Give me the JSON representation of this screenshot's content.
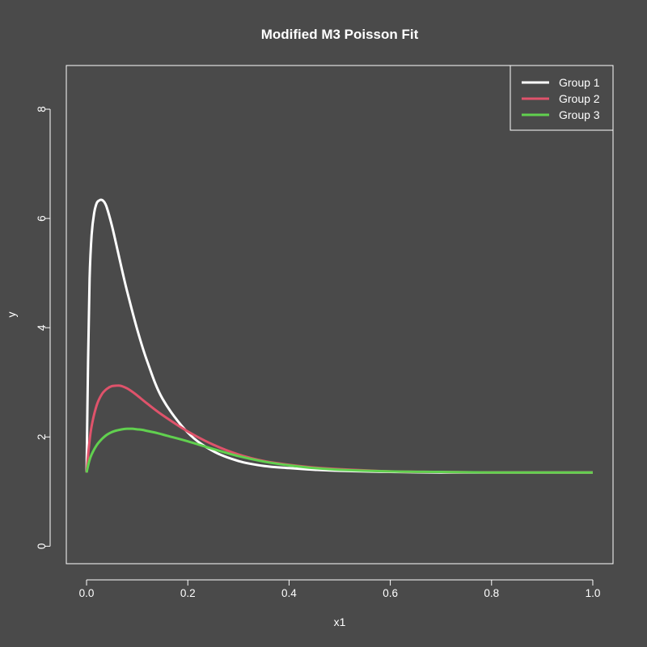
{
  "chart_data": {
    "type": "line",
    "title": "Modified M3 Poisson Fit",
    "xlabel": "x1",
    "ylabel": "y",
    "xlim": [
      -0.04,
      1.04
    ],
    "ylim": [
      -0.32,
      8.8
    ],
    "x_ticks": [
      "0.0",
      "0.2",
      "0.4",
      "0.6",
      "0.8",
      "1.0"
    ],
    "y_ticks": [
      "0",
      "2",
      "4",
      "6",
      "8"
    ],
    "legend_position": "top-right",
    "grid": false,
    "background_color": "#4a4a4a",
    "foreground_color": "#ffffff",
    "series": [
      {
        "name": "Group 1",
        "color": "#ffffff",
        "x": [
          0.0,
          0.003,
          0.006,
          0.01,
          0.015,
          0.02,
          0.025,
          0.03,
          0.035,
          0.04,
          0.05,
          0.06,
          0.07,
          0.08,
          0.1,
          0.12,
          0.15,
          0.2,
          0.25,
          0.3,
          0.35,
          0.4,
          0.45,
          0.5,
          0.6,
          0.7,
          0.8,
          1.0
        ],
        "y": [
          1.35,
          3.4,
          4.9,
          5.7,
          6.1,
          6.28,
          6.33,
          6.34,
          6.3,
          6.2,
          5.87,
          5.47,
          5.06,
          4.67,
          3.97,
          3.38,
          2.7,
          2.08,
          1.74,
          1.56,
          1.47,
          1.43,
          1.4,
          1.38,
          1.36,
          1.35,
          1.35,
          1.35
        ]
      },
      {
        "name": "Group 2",
        "color": "#df536b",
        "x": [
          0.0,
          0.005,
          0.01,
          0.02,
          0.03,
          0.04,
          0.05,
          0.06,
          0.065,
          0.07,
          0.08,
          0.09,
          0.1,
          0.12,
          0.15,
          0.2,
          0.25,
          0.3,
          0.35,
          0.4,
          0.45,
          0.5,
          0.6,
          0.7,
          0.8,
          1.0
        ],
        "y": [
          1.35,
          1.85,
          2.2,
          2.58,
          2.78,
          2.88,
          2.93,
          2.94,
          2.94,
          2.93,
          2.89,
          2.83,
          2.76,
          2.61,
          2.4,
          2.1,
          1.86,
          1.68,
          1.56,
          1.49,
          1.44,
          1.41,
          1.37,
          1.36,
          1.35,
          1.35
        ]
      },
      {
        "name": "Group 3",
        "color": "#61d04f",
        "x": [
          0.0,
          0.005,
          0.01,
          0.02,
          0.03,
          0.04,
          0.05,
          0.06,
          0.07,
          0.08,
          0.09,
          0.1,
          0.11,
          0.12,
          0.14,
          0.16,
          0.2,
          0.25,
          0.3,
          0.35,
          0.4,
          0.45,
          0.5,
          0.6,
          0.7,
          0.8,
          1.0
        ],
        "y": [
          1.35,
          1.55,
          1.68,
          1.85,
          1.96,
          2.04,
          2.09,
          2.12,
          2.14,
          2.15,
          2.15,
          2.14,
          2.13,
          2.11,
          2.07,
          2.02,
          1.92,
          1.78,
          1.65,
          1.55,
          1.48,
          1.43,
          1.4,
          1.37,
          1.36,
          1.35,
          1.35
        ]
      }
    ]
  }
}
